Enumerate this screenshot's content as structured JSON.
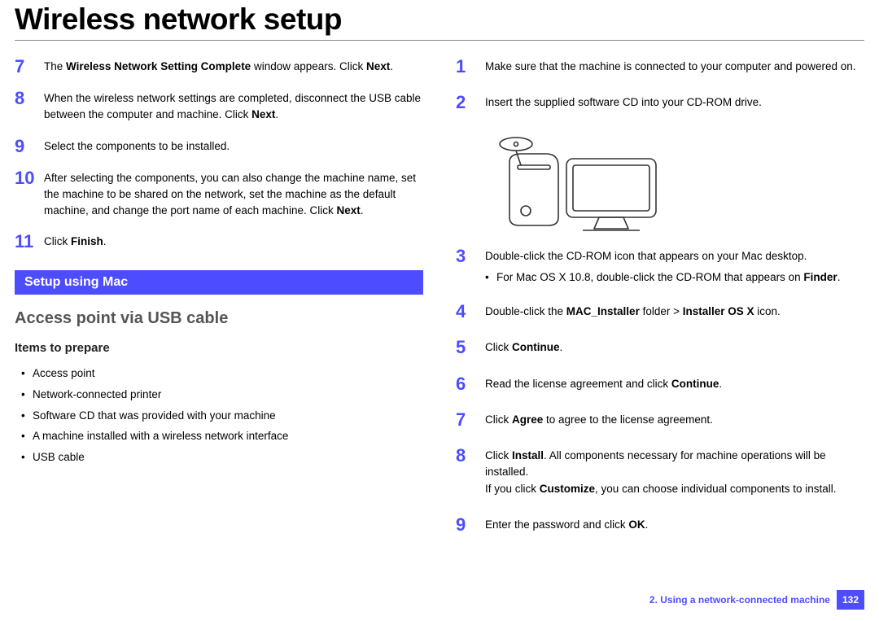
{
  "title": "Wireless network setup",
  "left": {
    "steps": [
      {
        "num": "7",
        "html": "The <b>Wireless Network Setting Complete</b> window appears. Click <b>Next</b>."
      },
      {
        "num": "8",
        "html": "When the wireless network settings are completed, disconnect the USB cable between the computer and machine. Click <b>Next</b>."
      },
      {
        "num": "9",
        "html": "Select the components to be installed."
      },
      {
        "num": "10",
        "html": "After selecting the components, you can also change the machine name, set the machine to be shared on the network, set the machine as the default machine, and change the port name of each machine. Click <b>Next</b>."
      },
      {
        "num": "11",
        "html": "Click <b>Finish</b>."
      }
    ],
    "section_bar": "Setup using Mac",
    "h2": "Access point via USB cable",
    "h3": "Items to prepare",
    "items": [
      "Access point",
      "Network-connected printer",
      "Software CD that was provided with your machine",
      "A machine installed with a wireless network interface",
      " USB cable"
    ]
  },
  "right": {
    "steps": [
      {
        "num": "1",
        "html": "Make sure that the machine is connected to your computer and powered on."
      },
      {
        "num": "2",
        "html": "Insert the supplied software CD into your CD-ROM drive."
      },
      {
        "num": "3",
        "html": "Double-click the CD-ROM icon that appears on your Mac desktop.",
        "sub": [
          "For Mac OS X 10.8, double-click the CD-ROM that appears on <b>Finder</b>."
        ]
      },
      {
        "num": "4",
        "html": "Double-click the <b>MAC_Installer</b> folder > <b>Installer OS X</b> icon."
      },
      {
        "num": "5",
        "html": "Click <b>Continue</b>."
      },
      {
        "num": "6",
        "html": "Read the license agreement and click <b>Continue</b>."
      },
      {
        "num": "7",
        "html": "Click <b>Agree</b> to agree to the license agreement."
      },
      {
        "num": "8",
        "html": "Click <b>Install</b>. All components necessary for machine operations will be installed.<br>If you click <b>Customize</b>, you can choose individual components to install."
      },
      {
        "num": "9",
        "html": "Enter the password and click <b>OK</b>."
      }
    ]
  },
  "footer": {
    "chapter": "2.  Using a network-connected machine",
    "page": "132"
  },
  "colors": {
    "accent": "#4d4dff",
    "text": "#000000",
    "subhead": "#555555",
    "rule": "#888888",
    "bg": "#ffffff"
  }
}
